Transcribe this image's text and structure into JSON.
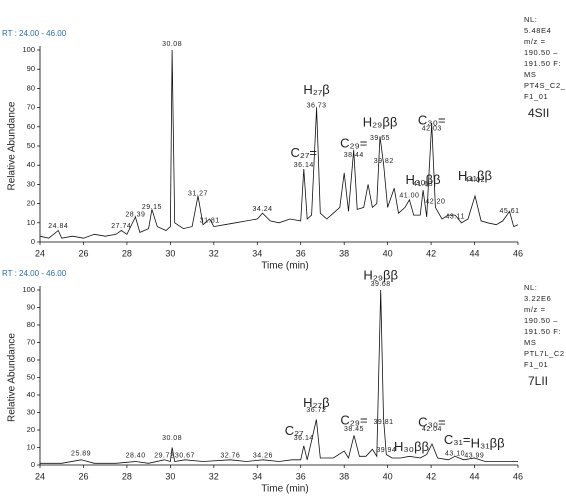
{
  "chart_data": [
    {
      "type": "line",
      "header": "RT : 24.00 - 46.00",
      "y_label": "Relative Abundance",
      "x_label": "Time (min)",
      "xlim": [
        24,
        46
      ],
      "xticks": [
        24,
        26,
        28,
        30,
        32,
        34,
        36,
        38,
        40,
        42,
        44,
        46
      ],
      "ylim": [
        0,
        100
      ],
      "yticks": [
        0,
        10,
        20,
        30,
        40,
        50,
        60,
        70,
        80,
        90,
        100
      ],
      "side_info": [
        "NL:",
        "5.48E4",
        "m/z =",
        "190.50 –",
        "191.50 F:",
        "MS",
        "PT4S_C2_",
        "F1_01"
      ],
      "sample": "4SII",
      "series": [
        {
          "color": "#111111",
          "x": [
            24.0,
            24.4,
            24.84,
            25.0,
            25.5,
            26,
            26.5,
            27,
            27.5,
            27.74,
            28,
            28.39,
            28.6,
            29,
            29.15,
            29.4,
            29.8,
            30.0,
            30.08,
            30.2,
            30.6,
            31,
            31.27,
            31.5,
            31.81,
            32,
            32.5,
            33,
            33.5,
            34,
            34.24,
            34.6,
            35,
            35.5,
            36,
            36.14,
            36.3,
            36.5,
            36.73,
            36.9,
            37.2,
            37.5,
            37.8,
            38.0,
            38.2,
            38.44,
            38.6,
            38.9,
            39.1,
            39.3,
            39.5,
            39.65,
            39.82,
            40.0,
            40.3,
            40.5,
            40.8,
            41.0,
            41.2,
            41.5,
            41.63,
            41.8,
            42.03,
            42.2,
            42.5,
            42.8,
            43.11,
            43.4,
            43.7,
            44.02,
            44.3,
            44.6,
            45,
            45.3,
            45.61,
            45.8,
            46
          ],
          "values": [
            3,
            2,
            6,
            2,
            3,
            2,
            4,
            3,
            4,
            6,
            4,
            13,
            5,
            7,
            17,
            8,
            6,
            8,
            100,
            10,
            7,
            8,
            24,
            9,
            12,
            8,
            9,
            10,
            11,
            12,
            15,
            11,
            10,
            12,
            11,
            38,
            12,
            14,
            70,
            15,
            12,
            15,
            18,
            36,
            16,
            48,
            17,
            18,
            30,
            18,
            20,
            55,
            40,
            18,
            28,
            15,
            18,
            22,
            14,
            14,
            27,
            13,
            62,
            18,
            12,
            14,
            14,
            10,
            12,
            24,
            11,
            10,
            9,
            11,
            16,
            8,
            9
          ]
        }
      ],
      "peaks": {
        "x": [
          24.84,
          27.74,
          28.39,
          29.15,
          30.08,
          31.27,
          31.81,
          34.24,
          36.14,
          36.73,
          38.44,
          39.65,
          39.82,
          41.63,
          41.0,
          42.03,
          42.2,
          43.11,
          44.02,
          45.61
        ],
        "y": [
          5,
          5,
          11,
          15,
          100,
          22,
          8,
          14,
          37,
          68,
          42,
          51,
          39,
          27,
          21,
          56,
          18,
          10,
          29,
          13
        ],
        "labels": [
          "24.84",
          "27.74",
          "28.39",
          "29.15",
          "30.08",
          "31.27",
          "31.81",
          "34.24",
          "36.14",
          "36.73",
          "38.44",
          "39.65",
          "39.82",
          "41.63",
          "41.00",
          "42.03",
          "42.20",
          "43.11",
          "44.02",
          "45.61"
        ]
      },
      "compounds": [
        {
          "text": "H₂₇β",
          "x": 36.73,
          "y": 79
        },
        {
          "text": "C₂₇=",
          "x": 36.14,
          "y": 46
        },
        {
          "text": "C₂₉=",
          "x": 38.44,
          "y": 51
        },
        {
          "text": "H₂₉ββ",
          "x": 39.65,
          "y": 62
        },
        {
          "text": "C₃₀=",
          "x": 42.03,
          "y": 63
        },
        {
          "text": "H₃₀ββ",
          "x": 41.63,
          "y": 32
        },
        {
          "text": "H₃₁ββ",
          "x": 44.02,
          "y": 34
        }
      ]
    },
    {
      "type": "line",
      "header": "RT : 24.00 - 46.00",
      "y_label": "Relative Abundance",
      "x_label": "Time (min)",
      "xlim": [
        24,
        46
      ],
      "xticks": [
        24,
        26,
        28,
        30,
        32,
        34,
        36,
        38,
        40,
        42,
        44,
        46
      ],
      "ylim": [
        0,
        100
      ],
      "yticks": [
        0,
        10,
        20,
        30,
        40,
        50,
        60,
        70,
        80,
        90,
        100
      ],
      "side_info": [
        "NL:",
        "3.22E6",
        "m/z =",
        "190.50 –",
        "191.50 F:",
        "MS",
        "PTL7L_C2",
        "F1_01"
      ],
      "sample": "7LII",
      "series": [
        {
          "color": "#111111",
          "x": [
            24,
            25,
            25.89,
            26.5,
            27.5,
            28.4,
            29,
            29.72,
            30.0,
            30.08,
            30.2,
            30.67,
            31.5,
            32.76,
            33.5,
            34.26,
            35,
            35.6,
            36,
            36.14,
            36.3,
            36.72,
            36.9,
            37.5,
            38.0,
            38.2,
            38.45,
            38.7,
            39.0,
            39.3,
            39.5,
            39.68,
            39.81,
            39.94,
            40.2,
            40.6,
            41.0,
            41.5,
            41.8,
            42.04,
            42.3,
            42.8,
            43.1,
            43.5,
            43.99,
            44.5,
            45,
            45.5,
            46
          ],
          "values": [
            1,
            1,
            3,
            1,
            1,
            2,
            1,
            3,
            2,
            10,
            2,
            3,
            2,
            3,
            2,
            3,
            2,
            3,
            3,
            11,
            3,
            26,
            4,
            4,
            8,
            4,
            17,
            5,
            5,
            9,
            5,
            100,
            27,
            6,
            4,
            4,
            5,
            4,
            6,
            12,
            4,
            3,
            5,
            3,
            4,
            2,
            2,
            2,
            2
          ]
        }
      ],
      "peaks": {
        "x": [
          25.89,
          28.4,
          29.72,
          30.08,
          30.67,
          32.76,
          34.26,
          36.14,
          36.72,
          38.45,
          39.68,
          39.81,
          39.94,
          42.04,
          43.1,
          43.99
        ],
        "y": [
          3,
          2,
          2,
          12,
          2,
          2,
          2,
          12,
          28,
          17,
          100,
          21,
          5,
          17,
          3,
          2
        ],
        "labels": [
          "25.89",
          "28.40",
          "29.72",
          "30.08",
          "30.67",
          "32.76",
          "34.26",
          "36.14",
          "36.72",
          "38.45",
          "39.68",
          "39.81",
          "39.94",
          "42.04",
          "43.10",
          "43.99"
        ]
      },
      "compounds": [
        {
          "text": "C₂₇",
          "x": 35.7,
          "y": 19
        },
        {
          "text": "H₂₇β",
          "x": 36.72,
          "y": 35
        },
        {
          "text": "C₂₉=",
          "x": 38.45,
          "y": 25
        },
        {
          "text": "H₂₉ββ",
          "x": 39.68,
          "y": 108
        },
        {
          "text": "C₃₀=",
          "x": 42.04,
          "y": 24
        },
        {
          "text": "H₃₀ββ",
          "x": 41.1,
          "y": 10
        },
        {
          "text": "C₃₁=",
          "x": 43.2,
          "y": 14
        },
        {
          "text": "H₃₁ββ",
          "x": 44.6,
          "y": 12
        }
      ]
    }
  ]
}
